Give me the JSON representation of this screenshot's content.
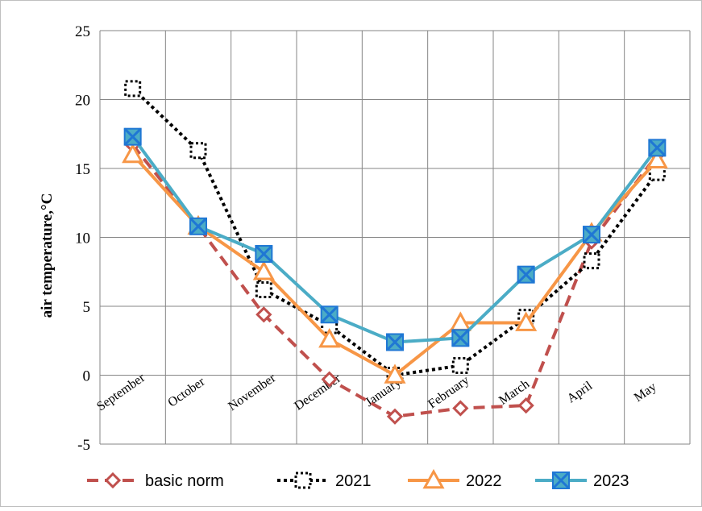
{
  "chart_data": {
    "type": "line",
    "title": "",
    "xlabel": "",
    "ylabel": "air temperature,°C",
    "categories": [
      "September",
      "October",
      "November",
      "December",
      "January",
      "February",
      "March",
      "April",
      "May"
    ],
    "ylim": [
      -5,
      25
    ],
    "yticks": [
      "-5",
      "0",
      "5",
      "10",
      "15",
      "20",
      "25"
    ],
    "grid": true,
    "legend_position": "bottom",
    "series": [
      {
        "name": "basic norm",
        "values": [
          16.7,
          10.8,
          4.4,
          -0.3,
          -3.0,
          -2.4,
          -2.2,
          9.7,
          16.0
        ],
        "color": "#c0504d",
        "line": "dashed",
        "marker": "diamond"
      },
      {
        "name": "2021",
        "values": [
          20.8,
          16.3,
          6.2,
          3.6,
          0.0,
          0.7,
          4.2,
          8.3,
          14.7
        ],
        "color": "#000000",
        "line": "dotted",
        "marker": "square"
      },
      {
        "name": "2022",
        "values": [
          16.0,
          10.8,
          7.5,
          2.6,
          0.0,
          3.8,
          3.8,
          10.3,
          15.6
        ],
        "color": "#f79646",
        "line": "solid",
        "marker": "triangle"
      },
      {
        "name": "2023",
        "values": [
          17.3,
          10.8,
          8.8,
          4.4,
          2.4,
          2.7,
          7.3,
          10.2,
          16.5
        ],
        "color": "#4bacc6",
        "line": "solid",
        "marker": "x-square"
      }
    ]
  }
}
